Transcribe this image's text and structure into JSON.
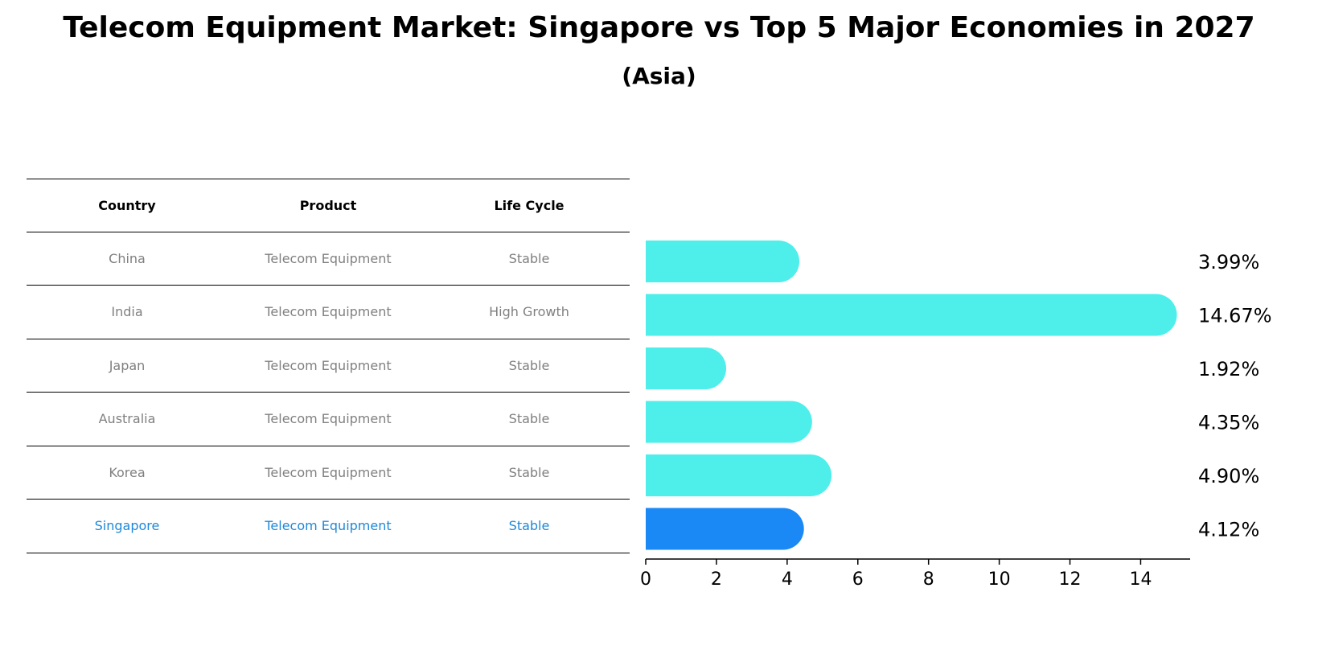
{
  "title": "Telecom Equipment Market: Singapore vs Top 5 Major Economies in 2027",
  "subtitle": "(Asia)",
  "table": {
    "headers": [
      "Country",
      "Product",
      "Life Cycle"
    ],
    "rows": [
      {
        "country": "China",
        "product": "Telecom Equipment",
        "life_cycle": "Stable"
      },
      {
        "country": "India",
        "product": "Telecom Equipment",
        "life_cycle": "High Growth"
      },
      {
        "country": "Japan",
        "product": "Telecom Equipment",
        "life_cycle": "Stable"
      },
      {
        "country": "Australia",
        "product": "Telecom Equipment",
        "life_cycle": "Stable"
      },
      {
        "country": "Korea",
        "product": "Telecom Equipment",
        "life_cycle": "Stable"
      },
      {
        "country": "Singapore",
        "product": "Telecom Equipment",
        "life_cycle": "Stable"
      }
    ],
    "highlight_color": "#1e88d8",
    "text_color": "#808080"
  },
  "chart_data": {
    "type": "bar",
    "orientation": "horizontal",
    "categories": [
      "China",
      "India",
      "Japan",
      "Australia",
      "Korea",
      "Singapore"
    ],
    "values": [
      3.99,
      14.67,
      1.92,
      4.35,
      4.9,
      4.12
    ],
    "value_labels": [
      "3.99%",
      "14.67%",
      "1.92%",
      "4.35%",
      "4.90%",
      "4.12%"
    ],
    "highlight": "Singapore",
    "xlim": [
      0,
      15.4
    ],
    "xticks": [
      0,
      2,
      4,
      6,
      8,
      10,
      12,
      14
    ],
    "xtick_labels": [
      "0",
      "2",
      "4",
      "6",
      "8",
      "10",
      "12",
      "14"
    ],
    "colors": {
      "default": "#4eeeea",
      "highlight": "#1a88f5"
    },
    "grid": false
  }
}
